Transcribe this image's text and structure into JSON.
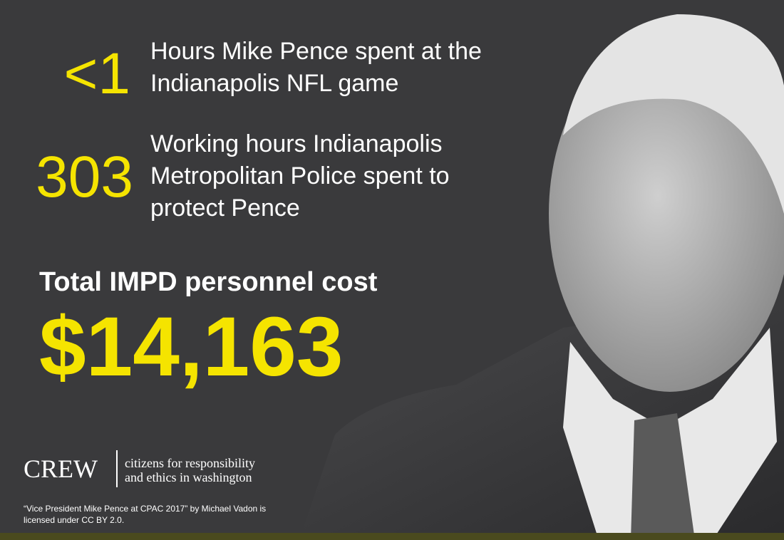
{
  "stats": [
    {
      "number": "<1",
      "lines": [
        "Hours Mike Pence spent at the",
        "Indianapolis NFL game"
      ]
    },
    {
      "number": "303",
      "lines": [
        "Working hours Indianapolis",
        "Metropolitan Police spent to",
        "protect Pence"
      ]
    }
  ],
  "total": {
    "label": "Total IMPD personnel cost",
    "amount": "$14,163"
  },
  "logo": {
    "name": "CREW",
    "lines": [
      "citizens for responsibility",
      "and ethics in washington"
    ]
  },
  "credit": [
    "“Vice President Mike Pence at CPAC 2017” by Michael Vadon is",
    "licensed under CC BY 2.0."
  ]
}
